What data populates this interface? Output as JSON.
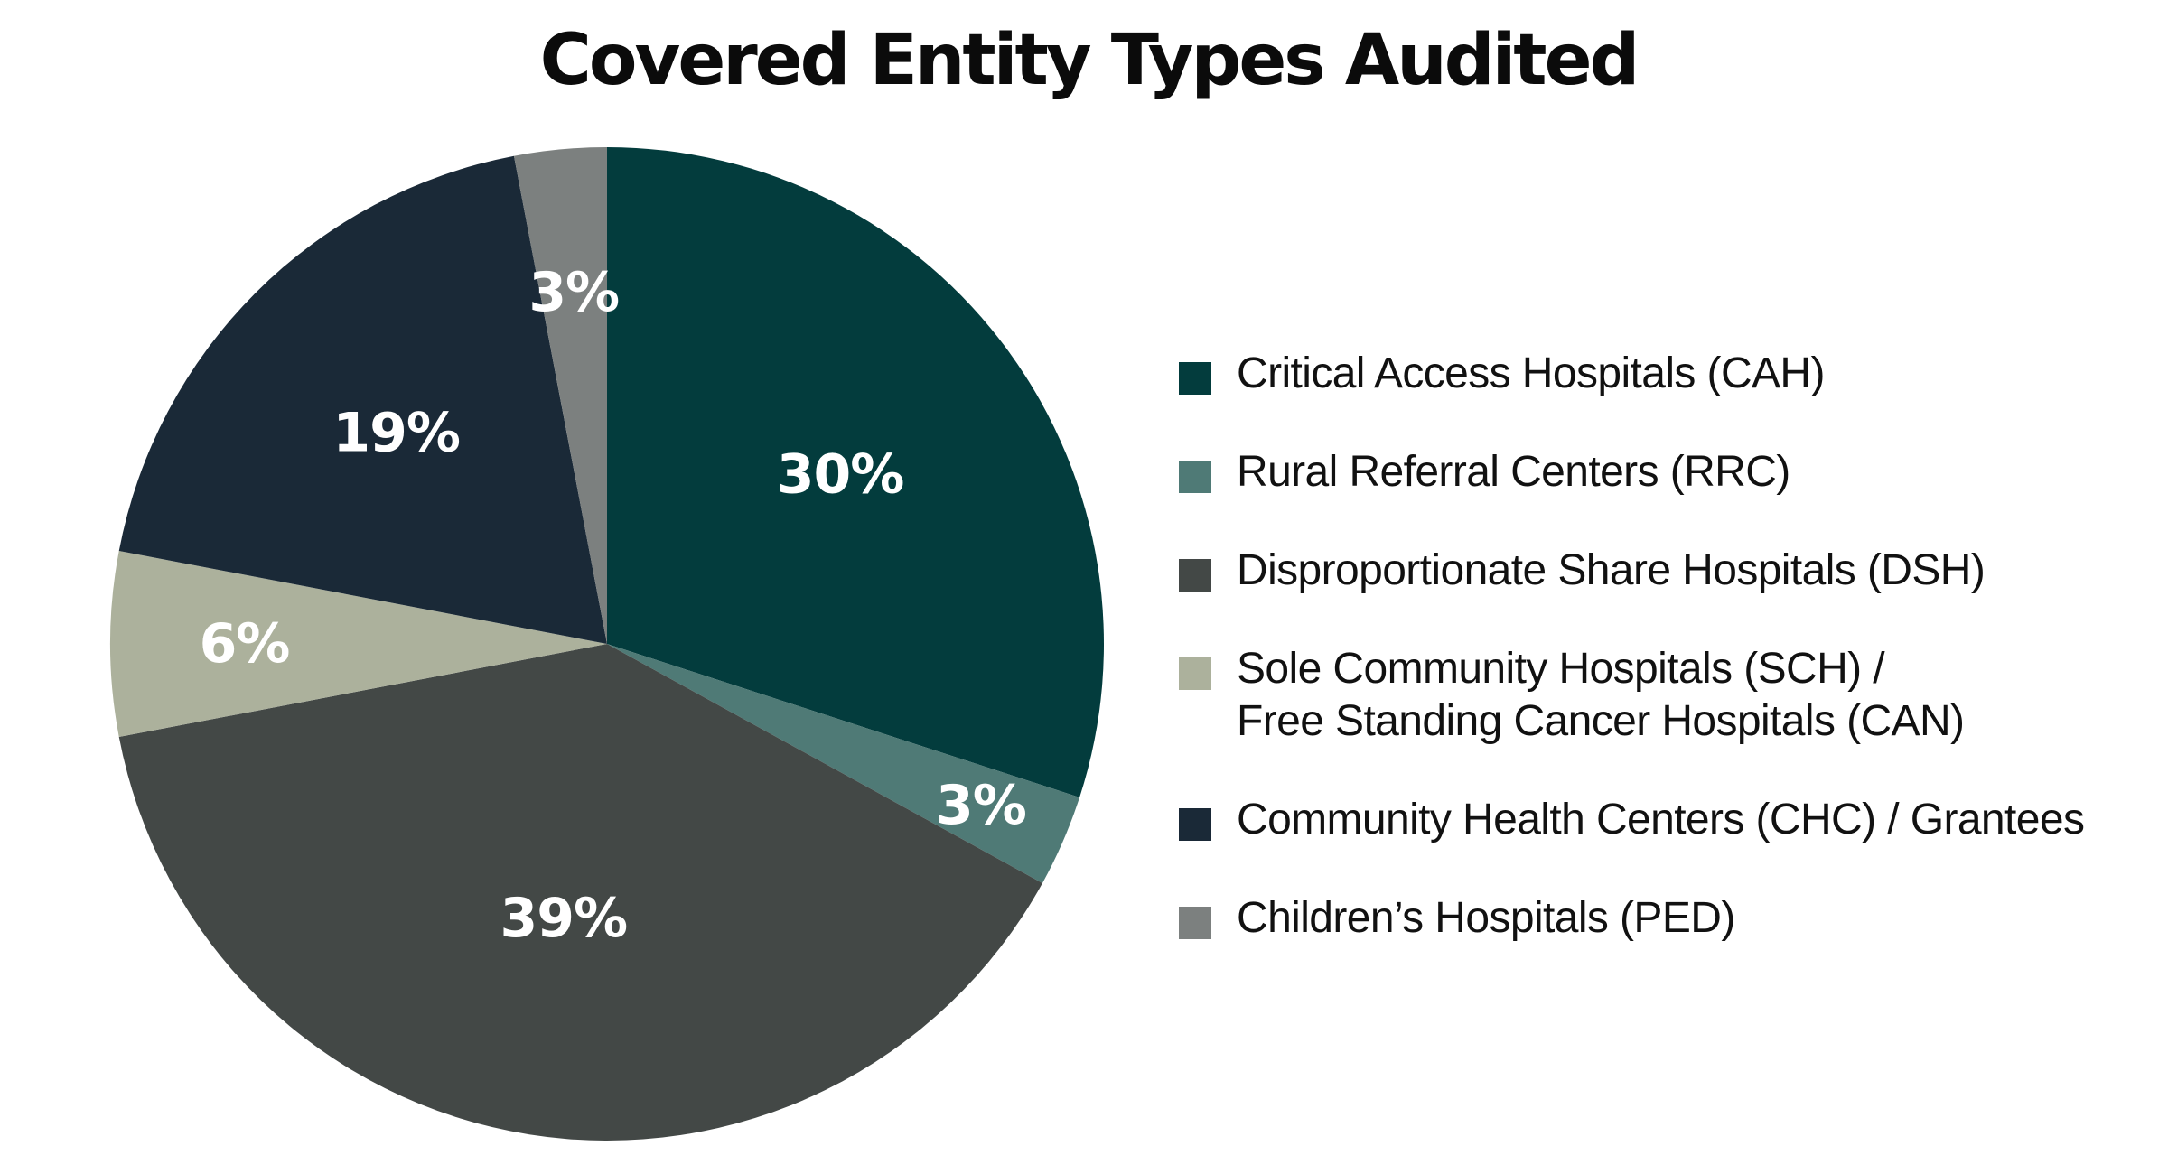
{
  "chart_data": {
    "type": "pie",
    "title": "Covered Entity Types Audited",
    "slices": [
      {
        "label": "Critical Access Hospitals (CAH)",
        "value": 30,
        "display": "30%",
        "color": "#033c3d"
      },
      {
        "label": "Rural Referral Centers (RRC)",
        "value": 3,
        "display": "3%",
        "color": "#4f7a76"
      },
      {
        "label": "Disproportionate Share Hospitals (DSH)",
        "value": 39,
        "display": "39%",
        "color": "#434846"
      },
      {
        "label": "Sole Community Hospitals (SCH) / \nFree Standing Cancer Hospitals (CAN)",
        "value": 6,
        "display": "6%",
        "color": "#acb19c"
      },
      {
        "label": "Community Health Centers (CHC) / Grantees",
        "value": 19,
        "display": "19%",
        "color": "#1a2937"
      },
      {
        "label": "Children’s Hospitals (PED)",
        "value": 3,
        "display": "3%",
        "color": "#7c807f"
      }
    ],
    "start_angle_deg": 0,
    "direction": "clockwise",
    "legend_position": "right"
  }
}
